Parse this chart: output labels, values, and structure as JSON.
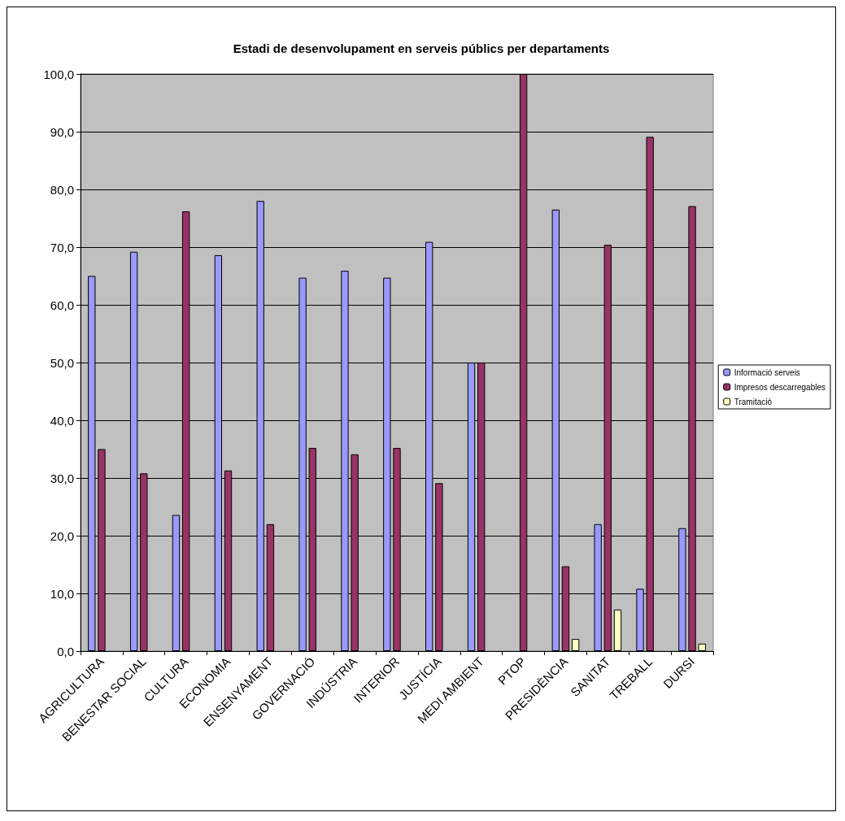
{
  "chart_data": {
    "type": "bar",
    "title": "Estadi de desenvolupament en serveis públics per departaments",
    "categories": [
      "AGRICULTURA",
      "BENESTAR SOCIAL",
      "CULTURA",
      "ECONOMIA",
      "ENSENYAMENT",
      "GOVERNACIÓ",
      "INDÚSTRIA",
      "INTERIOR",
      "JUSTÍCIA",
      "MEDI AMBIENT",
      "PTOP",
      "PRESIDÈNCIA",
      "SANITAT",
      "TREBALL",
      "DURSI"
    ],
    "series": [
      {
        "name": "Informació serveis",
        "color": "#9999ff",
        "values": [
          65.0,
          69.2,
          23.6,
          68.6,
          78.0,
          64.7,
          65.9,
          64.7,
          70.9,
          50.0,
          null,
          76.5,
          22.0,
          10.8,
          21.3
        ]
      },
      {
        "name": "Impresos descarregables",
        "color": "#993366",
        "values": [
          35.0,
          30.8,
          76.2,
          31.3,
          22.0,
          35.2,
          34.1,
          35.2,
          29.1,
          50.0,
          100.0,
          14.7,
          70.4,
          89.1,
          77.1
        ]
      },
      {
        "name": "Tramitació",
        "color": "#ffffc0",
        "values": [
          null,
          null,
          null,
          null,
          null,
          null,
          null,
          null,
          null,
          null,
          null,
          2.1,
          7.2,
          null,
          1.3
        ]
      }
    ],
    "ylim": [
      0,
      100
    ],
    "yticks": [
      {
        "value": 0,
        "label": "0,0"
      },
      {
        "value": 10,
        "label": "10,0"
      },
      {
        "value": 20,
        "label": "20,0"
      },
      {
        "value": 30,
        "label": "30,0"
      },
      {
        "value": 40,
        "label": "40,0"
      },
      {
        "value": 50,
        "label": "50,0"
      },
      {
        "value": 60,
        "label": "60,0"
      },
      {
        "value": 70,
        "label": "70,0"
      },
      {
        "value": 80,
        "label": "80,0"
      },
      {
        "value": 90,
        "label": "90,0"
      },
      {
        "value": 100,
        "label": "100,0"
      }
    ],
    "grid": "y",
    "legend": "right"
  }
}
